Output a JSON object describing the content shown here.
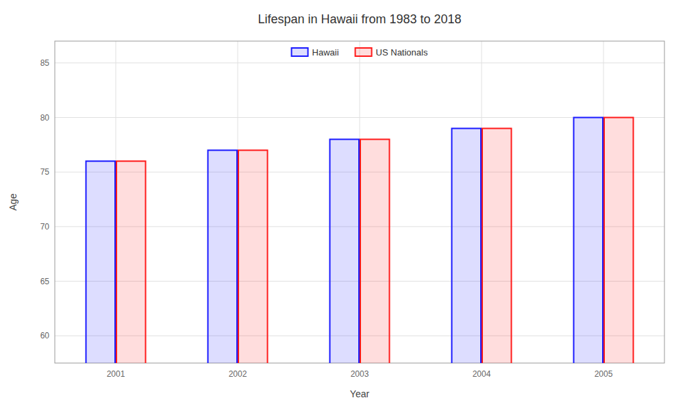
{
  "chart_data": {
    "type": "bar",
    "title": "Lifespan in Hawaii from 1983 to 2018",
    "xlabel": "Year",
    "ylabel": "Age",
    "categories": [
      "2001",
      "2002",
      "2003",
      "2004",
      "2005"
    ],
    "series": [
      {
        "name": "Hawaii",
        "color": "#1a1aff",
        "values": [
          76,
          77,
          78,
          79,
          80
        ]
      },
      {
        "name": "US Nationals",
        "color": "#ff1a1a",
        "values": [
          76,
          77,
          78,
          79,
          80
        ]
      }
    ],
    "ylim": [
      57.5,
      87
    ],
    "yticks": [
      60,
      65,
      70,
      75,
      80,
      85
    ],
    "grid": true,
    "legend": "top"
  }
}
